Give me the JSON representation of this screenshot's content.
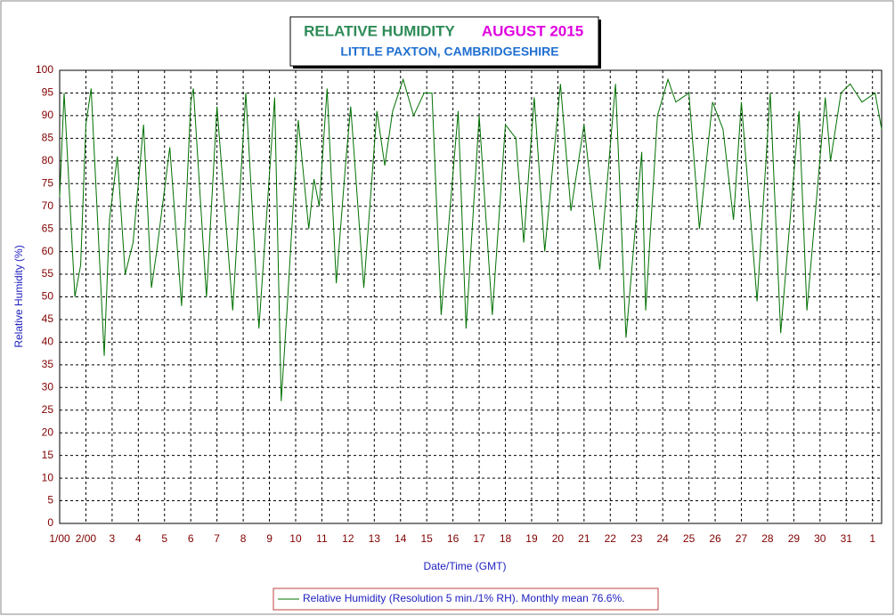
{
  "chart_data": {
    "type": "line",
    "title": "RELATIVE HUMIDITY",
    "title_color": "#2e8b57",
    "subtitle": "AUGUST 2015",
    "subtitle_color": "#e000e0",
    "location": "LITTLE PAXTON, CAMBRIDGESHIRE",
    "location_color": "#1f6fd0",
    "y_label": "Relative Humidity (%)",
    "x_label": "Date/Time (GMT)",
    "grid": true,
    "xlim": [
      1,
      32.35
    ],
    "ylim": [
      0,
      100
    ],
    "yticks": [
      0,
      5,
      10,
      15,
      20,
      25,
      30,
      35,
      40,
      45,
      50,
      55,
      60,
      65,
      70,
      75,
      80,
      85,
      90,
      95,
      100
    ],
    "xticks": [
      {
        "value": 1,
        "label": "1/00"
      },
      {
        "value": 2,
        "label": "2/00"
      },
      {
        "value": 3,
        "label": "3"
      },
      {
        "value": 4,
        "label": "4"
      },
      {
        "value": 5,
        "label": "5"
      },
      {
        "value": 6,
        "label": "6"
      },
      {
        "value": 7,
        "label": "7"
      },
      {
        "value": 8,
        "label": "8"
      },
      {
        "value": 9,
        "label": "9"
      },
      {
        "value": 10,
        "label": "10"
      },
      {
        "value": 11,
        "label": "11"
      },
      {
        "value": 12,
        "label": "12"
      },
      {
        "value": 13,
        "label": "13"
      },
      {
        "value": 14,
        "label": "14"
      },
      {
        "value": 15,
        "label": "15"
      },
      {
        "value": 16,
        "label": "16"
      },
      {
        "value": 17,
        "label": "17"
      },
      {
        "value": 18,
        "label": "18"
      },
      {
        "value": 19,
        "label": "19"
      },
      {
        "value": 20,
        "label": "20"
      },
      {
        "value": 21,
        "label": "21"
      },
      {
        "value": 22,
        "label": "22"
      },
      {
        "value": 23,
        "label": "23"
      },
      {
        "value": 24,
        "label": "24"
      },
      {
        "value": 25,
        "label": "25"
      },
      {
        "value": 26,
        "label": "26"
      },
      {
        "value": 27,
        "label": "27"
      },
      {
        "value": 28,
        "label": "28"
      },
      {
        "value": 29,
        "label": "29"
      },
      {
        "value": 30,
        "label": "30"
      },
      {
        "value": 31,
        "label": "31"
      },
      {
        "value": 32,
        "label": "1"
      }
    ],
    "x": [
      1,
      1.17,
      1.58,
      1.8,
      2.0,
      2.2,
      2.7,
      2.9,
      3.2,
      3.5,
      3.8,
      4.2,
      4.5,
      4.7,
      5.2,
      5.65,
      6.0,
      6.1,
      6.6,
      7.0,
      7.6,
      8.1,
      8.6,
      9.2,
      9.45,
      9.65,
      10.1,
      10.5,
      10.7,
      10.9,
      11.2,
      11.55,
      11.9,
      12.1,
      12.6,
      13.1,
      13.4,
      13.7,
      14.1,
      14.5,
      14.9,
      15.2,
      15.55,
      16.2,
      16.5,
      17.0,
      17.5,
      18.0,
      18.4,
      18.7,
      19.1,
      19.5,
      20.1,
      20.5,
      21.0,
      21.6,
      22.2,
      22.6,
      23.2,
      23.35,
      23.8,
      24.2,
      24.5,
      25.0,
      25.4,
      25.9,
      26.3,
      26.7,
      27.0,
      27.6,
      28.1,
      28.5,
      29.2,
      29.5,
      30.2,
      30.4,
      30.8,
      31.15,
      31.6,
      32.1,
      32.35
    ],
    "series": [
      {
        "name": "Relative Humidity (Resolution 5 min./1% RH). Monthly mean 76.6%.",
        "color": "#007000",
        "values": [
          72,
          95,
          50,
          57,
          88,
          96,
          37,
          67,
          81,
          55,
          62,
          88,
          52,
          60,
          83,
          48,
          93,
          96,
          50,
          92,
          47,
          95,
          43,
          94,
          27,
          45,
          89,
          65,
          76,
          70,
          96,
          53,
          79,
          92,
          52,
          91,
          79,
          91,
          98,
          90,
          95,
          95,
          46,
          91,
          43,
          90,
          46,
          88,
          85,
          62,
          94,
          60,
          97,
          69,
          88,
          56,
          97,
          41,
          82,
          47,
          90,
          98,
          93,
          95,
          65,
          93,
          87,
          67,
          93,
          49,
          95,
          42,
          91,
          47,
          94,
          80,
          95,
          97,
          93,
          95,
          87
        ]
      }
    ]
  }
}
